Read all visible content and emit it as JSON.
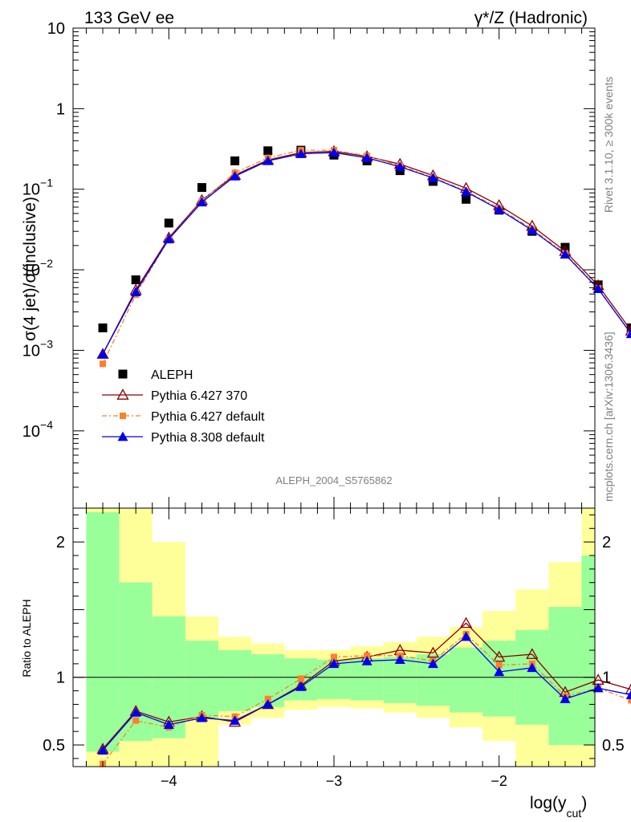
{
  "header": {
    "left": "133 GeV ee",
    "right": "γ*/Z (Hadronic)"
  },
  "side_labels": {
    "rivet": "Rivet 3.1.10, ≥ 300k events",
    "mcplots": "mcplots.cern.ch [arXiv:1306.3436]"
  },
  "analysis_id": "ALEPH_2004_S5765862",
  "colors": {
    "data": "#000000",
    "p6_370": "#8b0000",
    "p6_def": "#ff7f2a",
    "p8_def": "#0000ee",
    "band_inner": "#99ff99",
    "band_outer": "#ffff99"
  },
  "chart_data": [
    {
      "type": "line",
      "ylabel": "σ(4 jet)/σ(inclusive)",
      "xlabel": "log(y_cut)",
      "yscale": "log",
      "xlim": [
        -4.58,
        -1.42
      ],
      "ylim": [
        1.1e-05,
        10
      ],
      "y_ticks": [
        "10^-4",
        "10^-3",
        "10^-2",
        "10^-1",
        "1",
        "10"
      ],
      "x": [
        -4.4,
        -4.2,
        -4.0,
        -3.8,
        -3.6,
        -3.4,
        -3.2,
        -3.0,
        -2.8,
        -2.6,
        -2.4,
        -2.2,
        -2.0,
        -1.8,
        -1.6,
        -1.4,
        -1.2
      ],
      "series": [
        {
          "name": "ALEPH",
          "marker": "square",
          "values": [
            0.0019,
            0.0075,
            0.038,
            0.105,
            0.225,
            0.3,
            0.305,
            0.265,
            0.225,
            0.17,
            0.125,
            0.075,
            0.055,
            0.03,
            0.019,
            0.0065,
            0.0019
          ]
        },
        {
          "name": "Pythia 6.427 370",
          "marker": "open-triangle",
          "values": [
            0.0009,
            0.0056,
            0.025,
            0.073,
            0.15,
            0.23,
            0.285,
            0.295,
            0.255,
            0.205,
            0.148,
            0.103,
            0.063,
            0.035,
            0.017,
            0.0064,
            0.00175
          ]
        },
        {
          "name": "Pythia 6.427 default",
          "marker": "small-square",
          "values": [
            0.00068,
            0.0049,
            0.024,
            0.071,
            0.16,
            0.245,
            0.305,
            0.305,
            0.26,
            0.195,
            0.14,
            0.095,
            0.058,
            0.032,
            0.016,
            0.0059,
            0.0016
          ]
        },
        {
          "name": "Pythia 8.308 default",
          "marker": "filled-triangle",
          "values": [
            0.0009,
            0.0053,
            0.024,
            0.069,
            0.145,
            0.225,
            0.275,
            0.285,
            0.245,
            0.19,
            0.138,
            0.093,
            0.056,
            0.031,
            0.0155,
            0.0058,
            0.0016
          ]
        }
      ]
    },
    {
      "type": "line",
      "ylabel": "Ratio to ALEPH",
      "xlabel": "log(y_cut)",
      "xlim": [
        -4.58,
        -1.42
      ],
      "ylim": [
        0.34,
        2.25
      ],
      "y_ticks": [
        0.5,
        1,
        2
      ],
      "x_ticks": [
        -4,
        -3,
        -2
      ],
      "x": [
        -4.4,
        -4.2,
        -4.0,
        -3.8,
        -3.6,
        -3.4,
        -3.2,
        -3.0,
        -2.8,
        -2.6,
        -2.4,
        -2.2,
        -2.0,
        -1.8,
        -1.6,
        -1.4,
        -1.2
      ],
      "band_edges": [
        -4.5,
        -4.3,
        -4.1,
        -3.9,
        -3.7,
        -3.5,
        -3.3,
        -3.1,
        -2.9,
        -2.7,
        -2.5,
        -2.3,
        -2.1,
        -1.9,
        -1.7,
        -1.5,
        -1.3,
        -1.15
      ],
      "band_inner": {
        "low": [
          0.45,
          0.53,
          0.55,
          0.7,
          0.75,
          0.78,
          0.83,
          0.84,
          0.83,
          0.81,
          0.79,
          0.74,
          0.71,
          0.65,
          0.5,
          0.5,
          0.45
        ],
        "high": [
          2.22,
          1.7,
          1.45,
          1.27,
          1.2,
          1.17,
          1.14,
          1.13,
          1.14,
          1.15,
          1.17,
          1.22,
          1.27,
          1.35,
          1.52,
          1.9,
          2.22
        ]
      },
      "band_outer": {
        "low": [
          0.3,
          0.3,
          0.3,
          0.3,
          0.65,
          0.7,
          0.76,
          0.78,
          0.77,
          0.74,
          0.7,
          0.63,
          0.53,
          0.3,
          0.3,
          0.3,
          0.3
        ],
        "high": [
          2.5,
          2.5,
          2.0,
          1.45,
          1.3,
          1.25,
          1.2,
          1.2,
          1.23,
          1.26,
          1.3,
          1.37,
          1.49,
          1.65,
          1.85,
          2.5,
          2.5
        ]
      },
      "series": [
        {
          "name": "Pythia 6.427 370",
          "values": [
            0.47,
            0.75,
            0.67,
            0.71,
            0.67,
            0.8,
            0.94,
            1.12,
            1.15,
            1.2,
            1.18,
            1.4,
            1.15,
            1.17,
            0.89,
            0.98,
            0.91
          ]
        },
        {
          "name": "Pythia 6.427 default",
          "values": [
            0.36,
            0.68,
            0.63,
            0.72,
            0.71,
            0.84,
            0.99,
            1.15,
            1.16,
            1.16,
            1.12,
            1.32,
            1.09,
            1.1,
            0.86,
            0.92,
            0.83
          ]
        },
        {
          "name": "Pythia 8.308 default",
          "values": [
            0.46,
            0.74,
            0.65,
            0.7,
            0.68,
            0.8,
            0.93,
            1.1,
            1.12,
            1.13,
            1.1,
            1.3,
            1.04,
            1.07,
            0.84,
            0.92,
            0.87
          ]
        }
      ]
    }
  ]
}
